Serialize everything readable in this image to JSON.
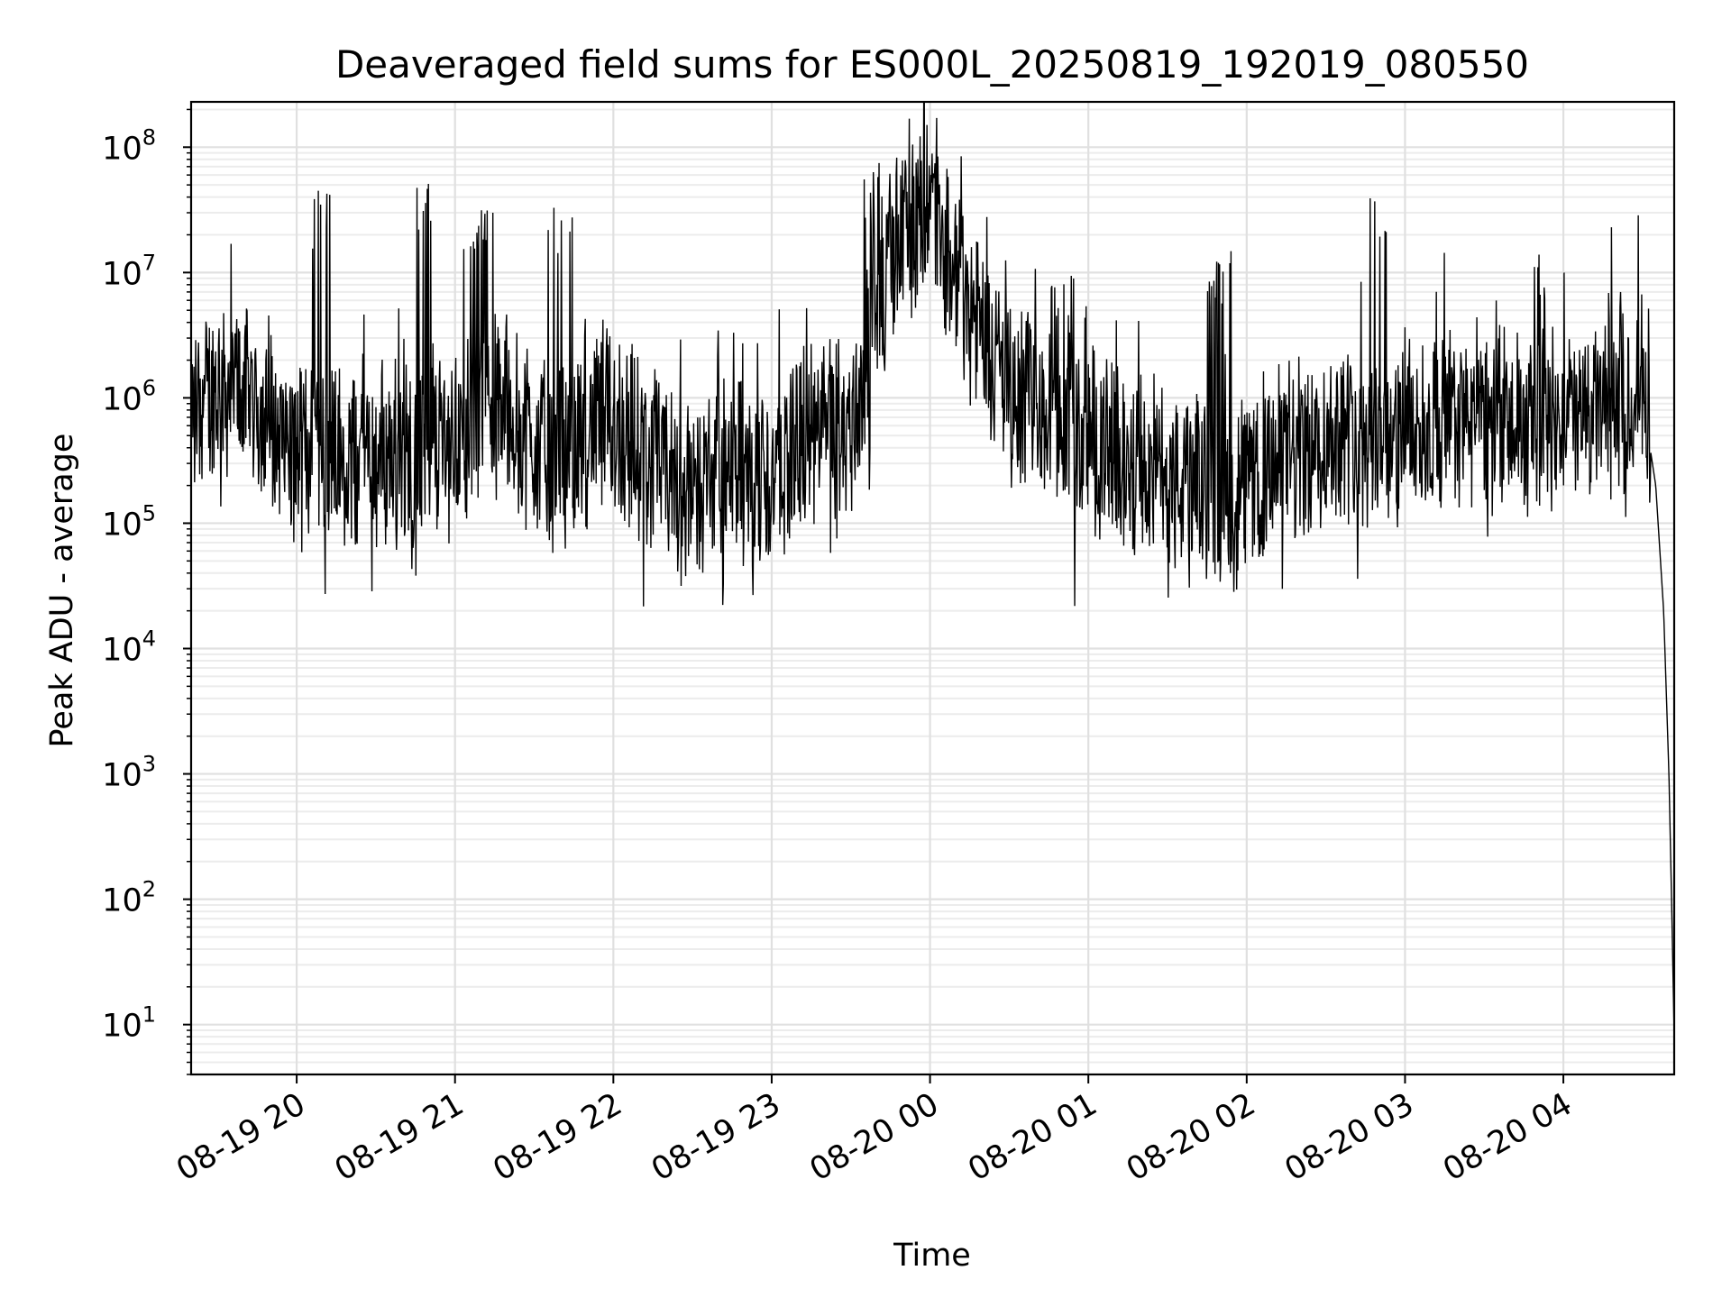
{
  "chart_data": {
    "type": "line",
    "title": "Deaveraged field sums for ES000L_20250819_192019_080550",
    "xlabel": "Time",
    "ylabel": "Peak ADU - average",
    "y_scale": "log",
    "ylim": [
      4,
      230000000.0
    ],
    "xlim": [
      "2025-08-19 19:20",
      "2025-08-20 04:42"
    ],
    "grid": true,
    "x_ticks": [
      "08-19 20",
      "08-19 21",
      "08-19 22",
      "08-19 23",
      "08-20 00",
      "08-20 01",
      "08-20 02",
      "08-20 03",
      "08-20 04"
    ],
    "y_ticks": [
      {
        "base": "10",
        "exp": "1",
        "value": 10
      },
      {
        "base": "10",
        "exp": "2",
        "value": 100
      },
      {
        "base": "10",
        "exp": "3",
        "value": 1000
      },
      {
        "base": "10",
        "exp": "4",
        "value": 10000
      },
      {
        "base": "10",
        "exp": "5",
        "value": 100000
      },
      {
        "base": "10",
        "exp": "6",
        "value": 1000000
      },
      {
        "base": "10",
        "exp": "7",
        "value": 10000000
      },
      {
        "base": "10",
        "exp": "8",
        "value": 100000000
      }
    ],
    "line_color": "#000000",
    "series": [
      {
        "x": [
          "2025-08-19 19:20",
          "2025-08-19 19:30",
          "2025-08-19 19:40",
          "2025-08-19 19:50",
          "2025-08-19 20:00",
          "2025-08-19 20:10",
          "2025-08-19 20:20",
          "2025-08-19 20:30",
          "2025-08-19 20:40",
          "2025-08-19 20:50",
          "2025-08-19 21:00",
          "2025-08-19 21:10",
          "2025-08-19 21:20",
          "2025-08-19 21:30",
          "2025-08-19 21:40",
          "2025-08-19 21:50",
          "2025-08-19 22:00",
          "2025-08-19 22:10",
          "2025-08-19 22:20",
          "2025-08-19 22:30",
          "2025-08-19 22:40",
          "2025-08-19 22:50",
          "2025-08-19 23:00",
          "2025-08-19 23:10",
          "2025-08-19 23:20",
          "2025-08-19 23:30",
          "2025-08-19 23:40",
          "2025-08-19 23:50",
          "2025-08-20 00:00",
          "2025-08-20 00:10",
          "2025-08-20 00:20",
          "2025-08-20 00:30",
          "2025-08-20 00:40",
          "2025-08-20 00:50",
          "2025-08-20 01:00",
          "2025-08-20 01:10",
          "2025-08-20 01:20",
          "2025-08-20 01:30",
          "2025-08-20 01:40",
          "2025-08-20 01:50",
          "2025-08-20 02:00",
          "2025-08-20 02:10",
          "2025-08-20 02:20",
          "2025-08-20 02:30",
          "2025-08-20 02:40",
          "2025-08-20 02:50",
          "2025-08-20 03:00",
          "2025-08-20 03:10",
          "2025-08-20 03:20",
          "2025-08-20 03:30",
          "2025-08-20 03:40",
          "2025-08-20 03:50",
          "2025-08-20 04:00",
          "2025-08-20 04:10",
          "2025-08-20 04:20",
          "2025-08-20 04:30",
          "2025-08-20 04:35",
          "2025-08-20 04:38",
          "2025-08-20 04:40",
          "2025-08-20 04:41",
          "2025-08-20 04:42"
        ],
        "y": [
          700000,
          1000000,
          1100000,
          500000,
          300000,
          350000,
          250000,
          300000,
          300000,
          350000,
          400000,
          700000,
          800000,
          400000,
          300000,
          500000,
          600000,
          300000,
          200000,
          150000,
          200000,
          150000,
          200000,
          350000,
          400000,
          500000,
          3000000,
          20000000,
          30000000,
          8000000,
          3000000,
          1000000,
          700000,
          600000,
          400000,
          300000,
          250000,
          200000,
          150000,
          150000,
          150000,
          250000,
          300000,
          400000,
          500000,
          400000,
          500000,
          500000,
          550000,
          600000,
          500000,
          500000,
          550000,
          650000,
          800000,
          1000000,
          200000,
          20000,
          1000,
          100,
          8
        ],
        "peaks": [
          {
            "x": "2025-08-19 20:10",
            "y": 45000000
          },
          {
            "x": "2025-08-19 20:50",
            "y": 58000000
          },
          {
            "x": "2025-08-19 21:10",
            "y": 42000000
          },
          {
            "x": "2025-08-19 21:40",
            "y": 33000000
          },
          {
            "x": "2025-08-19 22:50",
            "y": 4000000
          },
          {
            "x": "2025-08-19 23:40",
            "y": 75000000
          },
          {
            "x": "2025-08-20 00:00",
            "y": 100000000
          },
          {
            "x": "2025-08-20 00:50",
            "y": 14000000
          },
          {
            "x": "2025-08-20 01:50",
            "y": 15000000
          },
          {
            "x": "2025-08-20 02:50",
            "y": 40000000
          },
          {
            "x": "2025-08-20 03:50",
            "y": 15000000
          }
        ]
      }
    ]
  }
}
